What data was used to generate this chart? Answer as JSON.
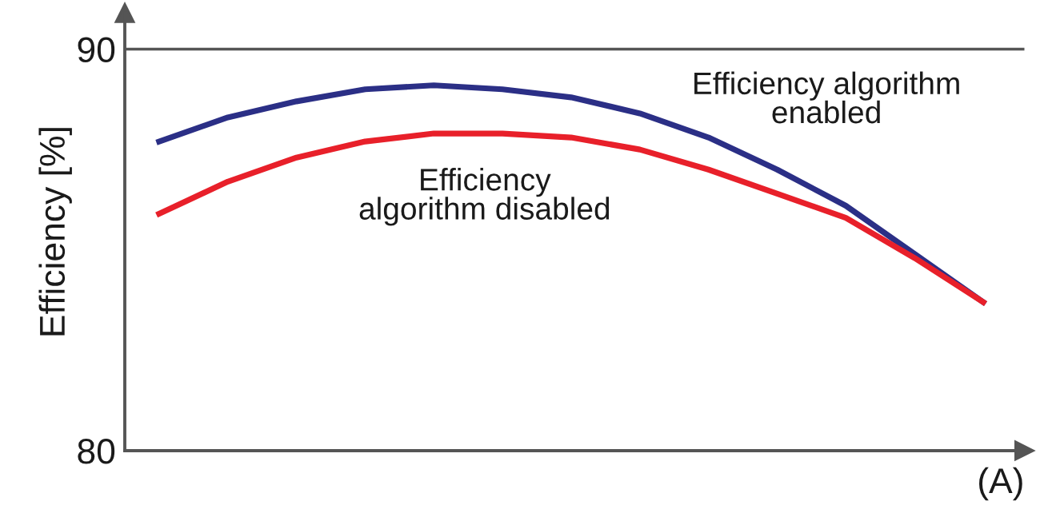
{
  "chart_data": {
    "type": "line",
    "ylabel": "Efficiency [%]",
    "xlabel": "(A)",
    "categories": [
      null,
      null,
      null,
      null,
      null,
      null,
      null,
      null,
      null,
      null,
      null,
      null,
      null
    ],
    "series": [
      {
        "name": "Efficiency algorithm\nenabled",
        "color": "#2b2f86",
        "values": [
          87.7,
          88.3,
          88.7,
          89.0,
          89.1,
          89.0,
          88.8,
          88.4,
          87.8,
          87.0,
          86.1,
          84.9,
          83.7
        ]
      },
      {
        "name": "Efficiency\nalgorithm disabled",
        "color": "#e8202a",
        "values": [
          85.9,
          86.7,
          87.3,
          87.7,
          87.9,
          87.9,
          87.8,
          87.5,
          87.0,
          86.4,
          85.8,
          84.8,
          83.7
        ]
      }
    ],
    "ylim": [
      80,
      90.9
    ],
    "yticks": [
      80,
      90
    ],
    "grid": "y",
    "legend": false,
    "marker": "none",
    "line_style": "solid"
  }
}
